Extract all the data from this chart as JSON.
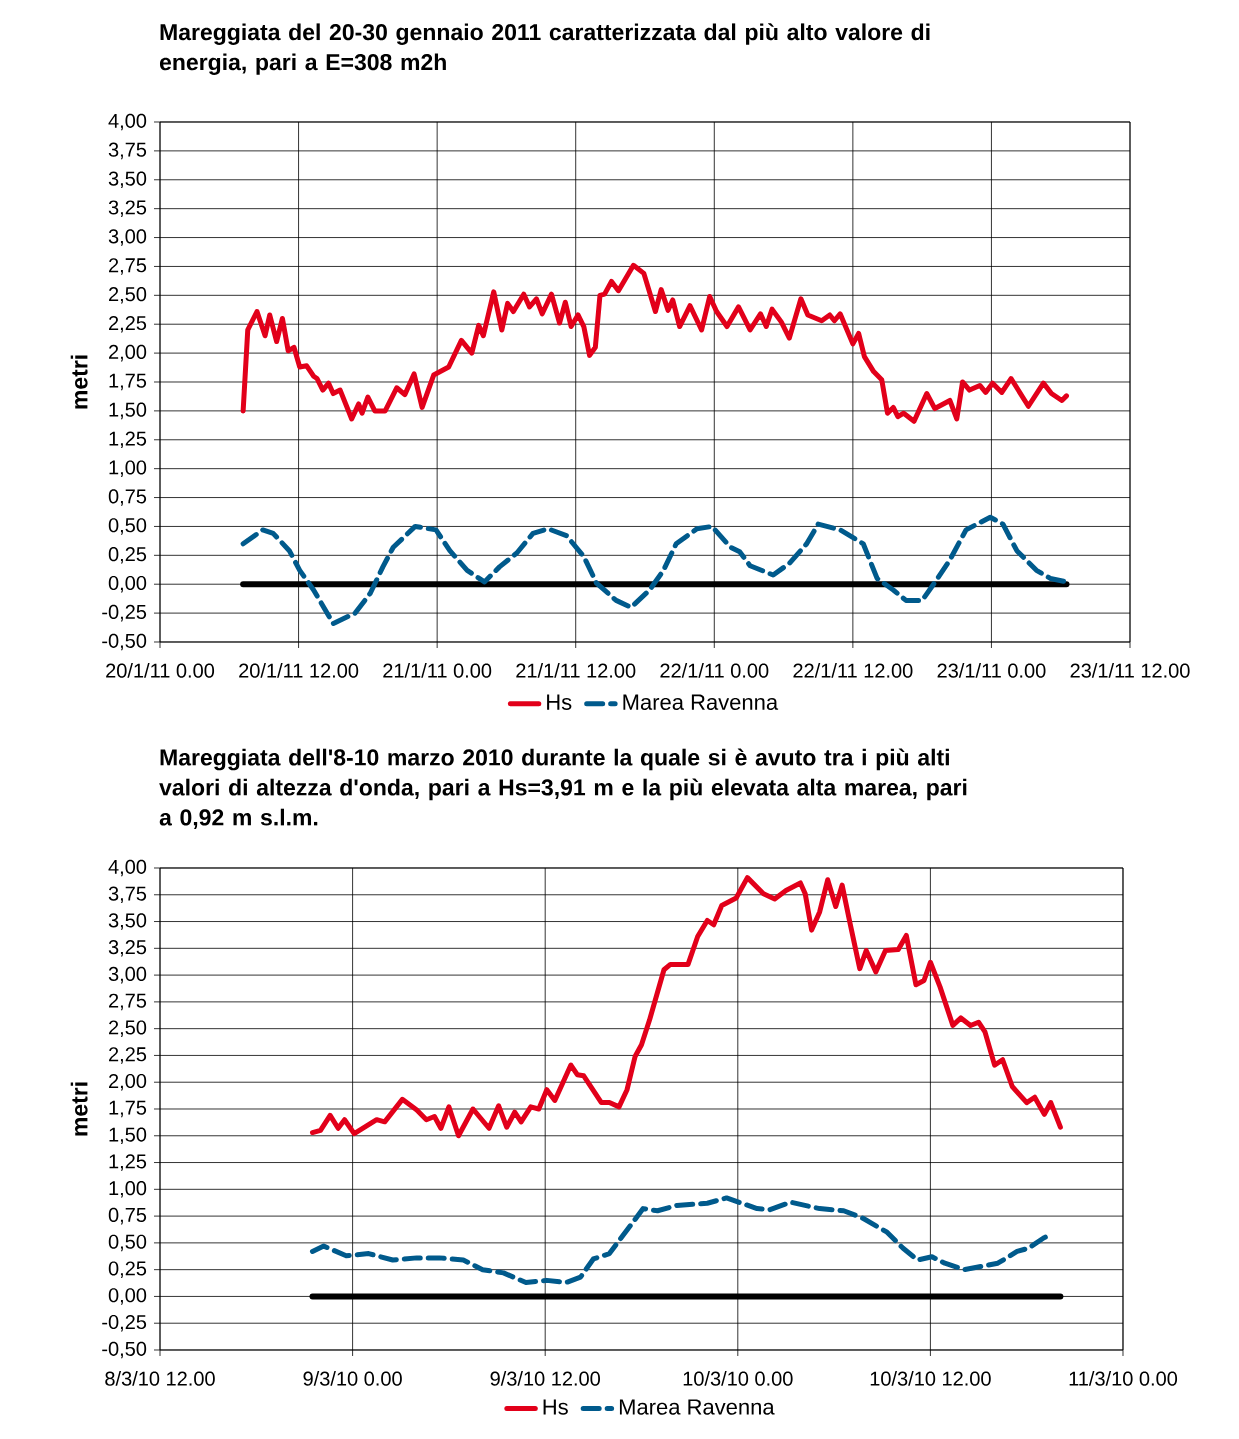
{
  "chart_data": [
    {
      "type": "line",
      "title": "Mareggiata del 20-30 gennaio 2011 caratterizzata dal più alto valore di energia, pari a E=308 m2h",
      "ylabel": "metri",
      "xlim": [
        "2011-01-20T00:00",
        "2011-01-23T12:00"
      ],
      "xticks": [
        {
          "value": "2011-01-20T00:00",
          "label": "20/1/11 0.00"
        },
        {
          "value": "2011-01-20T12:00",
          "label": "20/1/11 12.00"
        },
        {
          "value": "2011-01-21T00:00",
          "label": "21/1/11 0.00"
        },
        {
          "value": "2011-01-21T12:00",
          "label": "21/1/11 12.00"
        },
        {
          "value": "2011-01-22T00:00",
          "label": "22/1/11 0.00"
        },
        {
          "value": "2011-01-22T12:00",
          "label": "22/1/11 12.00"
        },
        {
          "value": "2011-01-23T00:00",
          "label": "23/1/11 0.00"
        },
        {
          "value": "2011-01-23T12:00",
          "label": "23/1/11 12.00"
        }
      ],
      "ylim": [
        -0.5,
        4
      ],
      "yticks": [
        {
          "value": -0.5,
          "label": "-0,50"
        },
        {
          "value": -0.25,
          "label": "-0,25"
        },
        {
          "value": 0,
          "label": "0,00"
        },
        {
          "value": 0.25,
          "label": "0,25"
        },
        {
          "value": 0.5,
          "label": "0,50"
        },
        {
          "value": 0.75,
          "label": "0,75"
        },
        {
          "value": 1,
          "label": "1,00"
        },
        {
          "value": 1.25,
          "label": "1,25"
        },
        {
          "value": 1.5,
          "label": "1,50"
        },
        {
          "value": 1.75,
          "label": "1,75"
        },
        {
          "value": 2,
          "label": "2,00"
        },
        {
          "value": 2.25,
          "label": "2,25"
        },
        {
          "value": 2.5,
          "label": "2,50"
        },
        {
          "value": 2.75,
          "label": "2,75"
        },
        {
          "value": 3,
          "label": "3,00"
        },
        {
          "value": 3.25,
          "label": "3,25"
        },
        {
          "value": 3.5,
          "label": "3,50"
        },
        {
          "value": 3.75,
          "label": "3,75"
        },
        {
          "value": 4,
          "label": "4,00"
        }
      ],
      "grid": true,
      "legend": "bottom",
      "marker": "none",
      "series": [
        {
          "color": "#000000",
          "line_style": "solid",
          "x": [
            "2011-01-20T07:12",
            "2011-01-23T06:30"
          ],
          "values": [
            0,
            0
          ]
        },
        {
          "name": "Hs",
          "color": "#e2001a",
          "line_style": "solid",
          "x": [
            "2011-01-20T07:12",
            "2011-01-20T07:36",
            "2011-01-20T08:24",
            "2011-01-20T09:06",
            "2011-01-20T09:30",
            "2011-01-20T10:06",
            "2011-01-20T10:36",
            "2011-01-20T11:06",
            "2011-01-20T11:36",
            "2011-01-20T12:06",
            "2011-01-20T12:42",
            "2011-01-20T13:18",
            "2011-01-20T13:36",
            "2011-01-20T14:06",
            "2011-01-20T14:36",
            "2011-01-20T15:00",
            "2011-01-20T15:36",
            "2011-01-20T16:36",
            "2011-01-20T17:12",
            "2011-01-20T17:30",
            "2011-01-20T18:00",
            "2011-01-20T18:36",
            "2011-01-20T19:30",
            "2011-01-20T20:30",
            "2011-01-20T21:12",
            "2011-01-20T22:00",
            "2011-01-20T22:42",
            "2011-01-20T23:42",
            "2011-01-21T01:00",
            "2011-01-21T02:06",
            "2011-01-21T03:00",
            "2011-01-21T03:36",
            "2011-01-21T04:00",
            "2011-01-21T04:54",
            "2011-01-21T05:36",
            "2011-01-21T06:06",
            "2011-01-21T06:36",
            "2011-01-21T07:30",
            "2011-01-21T08:00",
            "2011-01-21T08:36",
            "2011-01-21T09:06",
            "2011-01-21T09:54",
            "2011-01-21T10:36",
            "2011-01-21T11:06",
            "2011-01-21T11:36",
            "2011-01-21T12:12",
            "2011-01-21T12:42",
            "2011-01-21T13:12",
            "2011-01-21T13:42",
            "2011-01-21T14:06",
            "2011-01-21T14:30",
            "2011-01-21T15:06",
            "2011-01-21T15:42",
            "2011-01-21T17:00",
            "2011-01-21T17:54",
            "2011-01-21T18:54",
            "2011-01-21T19:24",
            "2011-01-21T20:00",
            "2011-01-21T20:24",
            "2011-01-21T21:00",
            "2011-01-21T21:54",
            "2011-01-21T22:54",
            "2011-01-21T23:36",
            "2011-01-22T00:12",
            "2011-01-22T01:06",
            "2011-01-22T02:06",
            "2011-01-22T03:06",
            "2011-01-22T04:00",
            "2011-01-22T04:30",
            "2011-01-22T05:00",
            "2011-01-22T05:48",
            "2011-01-22T06:30",
            "2011-01-22T07:30",
            "2011-01-22T08:06",
            "2011-01-22T09:18",
            "2011-01-22T10:00",
            "2011-01-22T10:24",
            "2011-01-22T10:54",
            "2011-01-22T12:00",
            "2011-01-22T12:30",
            "2011-01-22T13:00",
            "2011-01-22T13:48",
            "2011-01-22T14:30",
            "2011-01-22T15:00",
            "2011-01-22T15:30",
            "2011-01-22T15:54",
            "2011-01-22T16:24",
            "2011-01-22T17:18",
            "2011-01-22T18:24",
            "2011-01-22T19:06",
            "2011-01-22T20:24",
            "2011-01-22T21:00",
            "2011-01-22T21:30",
            "2011-01-22T22:06",
            "2011-01-22T23:00",
            "2011-01-22T23:30",
            "2011-01-23T00:06",
            "2011-01-23T00:54",
            "2011-01-23T01:42",
            "2011-01-23T03:12",
            "2011-01-23T04:30",
            "2011-01-23T05:12",
            "2011-01-23T06:06",
            "2011-01-23T06:30"
          ],
          "values": [
            1.5,
            2.2,
            2.36,
            2.15,
            2.33,
            2.1,
            2.3,
            2.02,
            2.05,
            1.88,
            1.89,
            1.8,
            1.78,
            1.68,
            1.74,
            1.65,
            1.68,
            1.43,
            1.56,
            1.48,
            1.62,
            1.5,
            1.5,
            1.7,
            1.64,
            1.82,
            1.53,
            1.81,
            1.88,
            2.11,
            2.0,
            2.24,
            2.15,
            2.53,
            2.2,
            2.43,
            2.36,
            2.51,
            2.4,
            2.47,
            2.34,
            2.51,
            2.26,
            2.44,
            2.23,
            2.33,
            2.23,
            1.98,
            2.05,
            2.5,
            2.51,
            2.62,
            2.54,
            2.76,
            2.69,
            2.36,
            2.55,
            2.37,
            2.46,
            2.23,
            2.41,
            2.2,
            2.49,
            2.36,
            2.23,
            2.4,
            2.2,
            2.34,
            2.23,
            2.38,
            2.27,
            2.13,
            2.47,
            2.33,
            2.28,
            2.33,
            2.28,
            2.34,
            2.08,
            2.17,
            1.97,
            1.84,
            1.77,
            1.48,
            1.53,
            1.45,
            1.48,
            1.41,
            1.65,
            1.52,
            1.59,
            1.43,
            1.75,
            1.68,
            1.72,
            1.66,
            1.74,
            1.66,
            1.78,
            1.54,
            1.74,
            1.65,
            1.59,
            1.63
          ]
        },
        {
          "name": "Marea Ravenna",
          "color": "#005a8c",
          "line_style": "dashed",
          "x": [
            "2011-01-20T07:12",
            "2011-01-20T08:54",
            "2011-01-20T09:48",
            "2011-01-20T11:12",
            "2011-01-20T12:06",
            "2011-01-20T13:18",
            "2011-01-20T15:00",
            "2011-01-20T16:54",
            "2011-01-20T18:12",
            "2011-01-20T19:18",
            "2011-01-20T20:12",
            "2011-01-20T22:06",
            "2011-01-20T23:54",
            "2011-01-21T01:06",
            "2011-01-21T02:36",
            "2011-01-21T04:06",
            "2011-01-21T05:24",
            "2011-01-21T06:54",
            "2011-01-21T08:18",
            "2011-01-21T09:36",
            "2011-01-21T11:12",
            "2011-01-21T12:42",
            "2011-01-21T13:48",
            "2011-01-21T15:30",
            "2011-01-21T16:48",
            "2011-01-21T18:24",
            "2011-01-21T19:36",
            "2011-01-21T20:42",
            "2011-01-21T22:30",
            "2011-01-21T23:48",
            "2011-01-22T01:24",
            "2011-01-22T02:12",
            "2011-01-22T03:06",
            "2011-01-22T05:06",
            "2011-01-22T06:30",
            "2011-01-22T08:00",
            "2011-01-22T09:00",
            "2011-01-22T10:54",
            "2011-01-22T12:54",
            "2011-01-22T14:06",
            "2011-01-22T15:30",
            "2011-01-22T16:36",
            "2011-01-22T18:00",
            "2011-01-22T19:12",
            "2011-01-22T20:24",
            "2011-01-22T21:48",
            "2011-01-22T23:54",
            "2011-01-23T01:00",
            "2011-01-23T02:12",
            "2011-01-23T03:54",
            "2011-01-23T05:06",
            "2011-01-23T06:30"
          ],
          "values": [
            0.35,
            0.47,
            0.44,
            0.29,
            0.12,
            -0.05,
            -0.34,
            -0.25,
            -0.08,
            0.15,
            0.32,
            0.5,
            0.47,
            0.29,
            0.12,
            0.02,
            0.15,
            0.27,
            0.44,
            0.48,
            0.42,
            0.24,
            0.01,
            -0.14,
            -0.2,
            -0.05,
            0.12,
            0.35,
            0.48,
            0.5,
            0.32,
            0.28,
            0.16,
            0.08,
            0.18,
            0.35,
            0.52,
            0.47,
            0.35,
            0.05,
            -0.05,
            -0.14,
            -0.14,
            0.03,
            0.21,
            0.47,
            0.58,
            0.52,
            0.29,
            0.12,
            0.05,
            0.02
          ]
        }
      ]
    },
    {
      "type": "line",
      "title": "Mareggiata dell'8-10 marzo 2010 durante la quale si è avuto tra i più alti valori di altezza d'onda, pari a Hs=3,91 m e la più elevata alta marea, pari a 0,92 m s.l.m.",
      "ylabel": "metri",
      "xlim": [
        "2010-03-08T12:00",
        "2010-03-11T00:00"
      ],
      "xticks": [
        {
          "value": "2010-03-08T12:00",
          "label": "8/3/10 12.00"
        },
        {
          "value": "2010-03-09T00:00",
          "label": "9/3/10 0.00"
        },
        {
          "value": "2010-03-09T12:00",
          "label": "9/3/10 12.00"
        },
        {
          "value": "2010-03-10T00:00",
          "label": "10/3/10 0.00"
        },
        {
          "value": "2010-03-10T12:00",
          "label": "10/3/10 12.00"
        },
        {
          "value": "2010-03-11T00:00",
          "label": "11/3/10 0.00"
        }
      ],
      "ylim": [
        -0.5,
        4
      ],
      "yticks": [
        {
          "value": -0.5,
          "label": "-0,50"
        },
        {
          "value": -0.25,
          "label": "-0,25"
        },
        {
          "value": 0,
          "label": "0,00"
        },
        {
          "value": 0.25,
          "label": "0,25"
        },
        {
          "value": 0.5,
          "label": "0,50"
        },
        {
          "value": 0.75,
          "label": "0,75"
        },
        {
          "value": 1,
          "label": "1,00"
        },
        {
          "value": 1.25,
          "label": "1,25"
        },
        {
          "value": 1.5,
          "label": "1,50"
        },
        {
          "value": 1.75,
          "label": "1,75"
        },
        {
          "value": 2,
          "label": "2,00"
        },
        {
          "value": 2.25,
          "label": "2,25"
        },
        {
          "value": 2.5,
          "label": "2,50"
        },
        {
          "value": 2.75,
          "label": "2,75"
        },
        {
          "value": 3,
          "label": "3,00"
        },
        {
          "value": 3.25,
          "label": "3,25"
        },
        {
          "value": 3.5,
          "label": "3,50"
        },
        {
          "value": 3.75,
          "label": "3,75"
        },
        {
          "value": 4,
          "label": "4,00"
        }
      ],
      "grid": true,
      "legend": "bottom",
      "marker": "none",
      "series": [
        {
          "color": "#000000",
          "line_style": "solid",
          "x": [
            "2010-03-08T21:30",
            "2010-03-10T20:06"
          ],
          "values": [
            0,
            0
          ]
        },
        {
          "name": "Hs",
          "color": "#e2001a",
          "line_style": "solid",
          "x": [
            "2010-03-08T21:30",
            "2010-03-08T22:00",
            "2010-03-08T22:36",
            "2010-03-08T23:06",
            "2010-03-08T23:30",
            "2010-03-09T00:06",
            "2010-03-09T01:30",
            "2010-03-09T02:00",
            "2010-03-09T03:06",
            "2010-03-09T04:00",
            "2010-03-09T04:36",
            "2010-03-09T05:06",
            "2010-03-09T05:30",
            "2010-03-09T06:00",
            "2010-03-09T06:36",
            "2010-03-09T07:30",
            "2010-03-09T08:30",
            "2010-03-09T09:06",
            "2010-03-09T09:36",
            "2010-03-09T10:06",
            "2010-03-09T10:30",
            "2010-03-09T11:06",
            "2010-03-09T11:36",
            "2010-03-09T12:06",
            "2010-03-09T12:36",
            "2010-03-09T13:36",
            "2010-03-09T14:00",
            "2010-03-09T14:24",
            "2010-03-09T15:30",
            "2010-03-09T16:00",
            "2010-03-09T16:36",
            "2010-03-09T17:06",
            "2010-03-09T17:36",
            "2010-03-09T18:00",
            "2010-03-09T18:30",
            "2010-03-09T19:24",
            "2010-03-09T19:48",
            "2010-03-09T20:54",
            "2010-03-09T21:30",
            "2010-03-09T22:06",
            "2010-03-09T22:30",
            "2010-03-09T23:00",
            "2010-03-09T23:54",
            "2010-03-10T00:36",
            "2010-03-10T01:36",
            "2010-03-10T02:18",
            "2010-03-10T03:00",
            "2010-03-10T03:54",
            "2010-03-10T04:12",
            "2010-03-10T04:36",
            "2010-03-10T05:06",
            "2010-03-10T05:36",
            "2010-03-10T06:06",
            "2010-03-10T06:30",
            "2010-03-10T07:00",
            "2010-03-10T07:36",
            "2010-03-10T08:00",
            "2010-03-10T08:36",
            "2010-03-10T09:12",
            "2010-03-10T10:00",
            "2010-03-10T10:30",
            "2010-03-10T11:06",
            "2010-03-10T11:36",
            "2010-03-10T12:00",
            "2010-03-10T12:36",
            "2010-03-10T13:24",
            "2010-03-10T13:54",
            "2010-03-10T14:30",
            "2010-03-10T15:00",
            "2010-03-10T15:24",
            "2010-03-10T16:00",
            "2010-03-10T16:30",
            "2010-03-10T17:06",
            "2010-03-10T18:00",
            "2010-03-10T18:30",
            "2010-03-10T19:06",
            "2010-03-10T19:30",
            "2010-03-10T20:06"
          ],
          "values": [
            1.53,
            1.55,
            1.69,
            1.57,
            1.65,
            1.52,
            1.65,
            1.63,
            1.84,
            1.74,
            1.65,
            1.68,
            1.57,
            1.77,
            1.5,
            1.75,
            1.57,
            1.78,
            1.58,
            1.72,
            1.63,
            1.77,
            1.75,
            1.93,
            1.83,
            2.16,
            2.07,
            2.06,
            1.81,
            1.81,
            1.77,
            1.93,
            2.24,
            2.35,
            2.58,
            3.05,
            3.1,
            3.1,
            3.36,
            3.51,
            3.47,
            3.65,
            3.72,
            3.91,
            3.76,
            3.71,
            3.79,
            3.86,
            3.76,
            3.42,
            3.59,
            3.89,
            3.64,
            3.84,
            3.48,
            3.06,
            3.23,
            3.03,
            3.23,
            3.24,
            3.37,
            2.91,
            2.95,
            3.12,
            2.89,
            2.53,
            2.6,
            2.53,
            2.56,
            2.47,
            2.16,
            2.21,
            1.96,
            1.81,
            1.86,
            1.7,
            1.81,
            1.58
          ]
        },
        {
          "name": "Marea Ravenna",
          "color": "#005a8c",
          "line_style": "dashed",
          "x": [
            "2010-03-08T21:30",
            "2010-03-08T22:12",
            "2010-03-08T23:36",
            "2010-03-09T01:00",
            "2010-03-09T02:30",
            "2010-03-09T04:00",
            "2010-03-09T05:24",
            "2010-03-09T06:54",
            "2010-03-09T08:06",
            "2010-03-09T09:24",
            "2010-03-09T10:48",
            "2010-03-09T12:06",
            "2010-03-09T13:18",
            "2010-03-09T14:12",
            "2010-03-09T15:00",
            "2010-03-09T16:00",
            "2010-03-09T17:06",
            "2010-03-09T18:06",
            "2010-03-09T19:00",
            "2010-03-09T20:12",
            "2010-03-09T22:06",
            "2010-03-09T23:18",
            "2010-03-10T01:12",
            "2010-03-10T02:00",
            "2010-03-10T03:18",
            "2010-03-10T05:06",
            "2010-03-10T06:36",
            "2010-03-10T07:48",
            "2010-03-10T09:18",
            "2010-03-10T10:18",
            "2010-03-10T11:12",
            "2010-03-10T12:06",
            "2010-03-10T12:54",
            "2010-03-10T14:06",
            "2010-03-10T15:30",
            "2010-03-10T16:12",
            "2010-03-10T17:24",
            "2010-03-10T18:06",
            "2010-03-10T19:06",
            "2010-03-10T19:30"
          ],
          "values": [
            0.42,
            0.47,
            0.38,
            0.4,
            0.34,
            0.36,
            0.36,
            0.34,
            0.25,
            0.22,
            0.13,
            0.15,
            0.13,
            0.18,
            0.35,
            0.4,
            0.62,
            0.82,
            0.8,
            0.85,
            0.87,
            0.92,
            0.82,
            0.81,
            0.88,
            0.82,
            0.8,
            0.73,
            0.6,
            0.45,
            0.34,
            0.37,
            0.31,
            0.25,
            0.29,
            0.31,
            0.42,
            0.45,
            0.55,
            0.57
          ]
        }
      ]
    }
  ]
}
